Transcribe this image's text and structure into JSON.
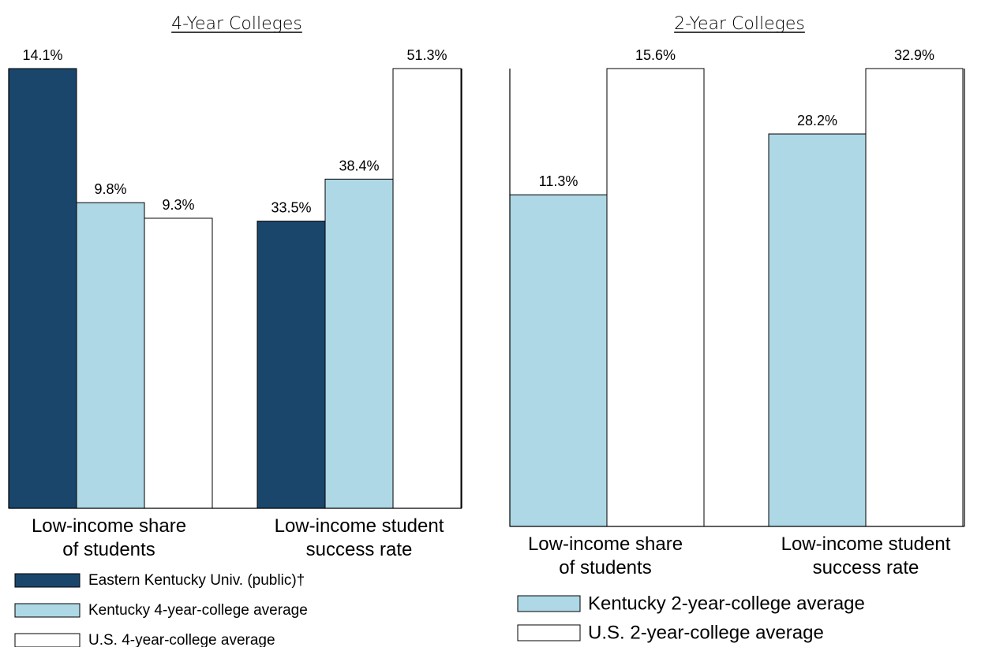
{
  "colors": {
    "eku": "#1b466c",
    "kentucky": "#aed8e5",
    "us": "#ffffff",
    "stroke": "#000000"
  },
  "chart_data": [
    {
      "type": "bar",
      "title": "4-Year Colleges",
      "categories": [
        "Low-income share of students",
        "Low-income student success rate"
      ],
      "category_lines": [
        [
          "Low-income share",
          "of students"
        ],
        [
          "Low-income student",
          "success rate"
        ]
      ],
      "series": [
        {
          "name": "Eastern Kentucky Univ. (public)†",
          "color_key": "eku",
          "values": [
            14.1,
            33.5
          ],
          "labels": [
            "14.1%",
            "33.5%"
          ]
        },
        {
          "name": "Kentucky 4-year-college average",
          "color_key": "kentucky",
          "values": [
            9.8,
            38.4
          ],
          "labels": [
            "9.8%",
            "38.4%"
          ]
        },
        {
          "name": "U.S. 4-year-college average",
          "color_key": "us",
          "values": [
            9.3,
            51.3
          ],
          "labels": [
            "9.3%",
            "51.3%"
          ]
        }
      ],
      "normalization": "each category scaled to its own maximum",
      "legend_position": "bottom-left",
      "grid": false
    },
    {
      "type": "bar",
      "title": "2-Year Colleges",
      "categories": [
        "Low-income share of students",
        "Low-income student success rate"
      ],
      "category_lines": [
        [
          "Low-income share",
          "of students"
        ],
        [
          "Low-income student",
          "success rate"
        ]
      ],
      "series": [
        {
          "name": "Kentucky 2-year-college average",
          "color_key": "kentucky",
          "values": [
            11.3,
            28.2
          ],
          "labels": [
            "11.3%",
            "28.2%"
          ]
        },
        {
          "name": "U.S. 2-year-college average",
          "color_key": "us",
          "values": [
            15.6,
            32.9
          ],
          "labels": [
            "15.6%",
            "32.9%"
          ]
        }
      ],
      "normalization": "each category scaled to its own maximum",
      "legend_position": "bottom-left",
      "grid": false
    }
  ]
}
